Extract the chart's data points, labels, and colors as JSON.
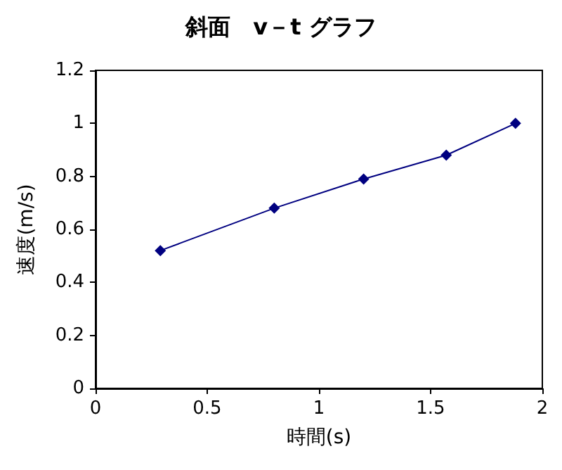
{
  "chart_data": {
    "type": "line",
    "title": "斜面　v－t グラフ",
    "xlabel": "時間(s)",
    "ylabel": "速度(m/s)",
    "x": [
      0.29,
      0.8,
      1.2,
      1.57,
      1.88
    ],
    "series": [
      {
        "color": "#000080",
        "values": [
          0.52,
          0.68,
          0.79,
          0.88,
          1.0
        ]
      }
    ],
    "xlim": [
      0,
      2
    ],
    "xticks": [
      0,
      0.5,
      1,
      1.5,
      2
    ],
    "ylim": [
      0,
      1.2
    ],
    "yticks": [
      0,
      0.2,
      0.4,
      0.6,
      0.8,
      1,
      1.2
    ],
    "grid": false,
    "marker": "diamond",
    "line_style": "solid"
  }
}
